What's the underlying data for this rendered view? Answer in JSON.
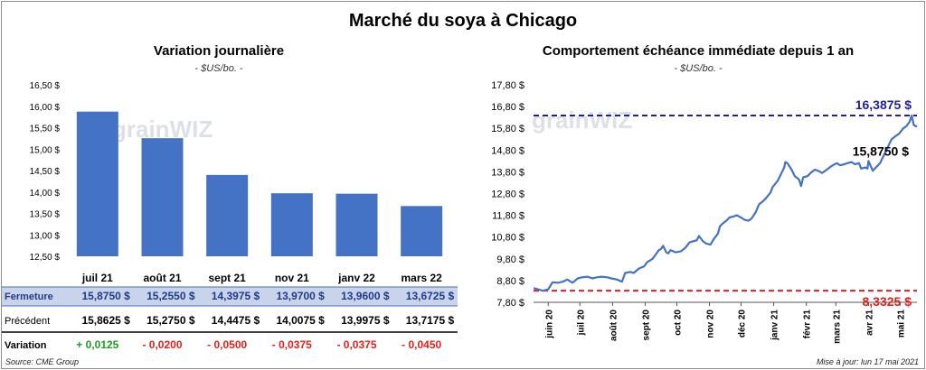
{
  "title": "Marché du soya à Chicago",
  "left": {
    "title": "Variation journalière",
    "subtitle": "- $US/bo. -",
    "watermark": "grainWIZ"
  },
  "right": {
    "title": "Comportement échéance immédiate depuis 1 an",
    "subtitle": "- $US/bo. -",
    "watermark": "grainWIZ",
    "annotations": {
      "max_label": "16,3875 $",
      "min_label": "8,3325 $",
      "last_label": "15,8750 $"
    }
  },
  "table": {
    "rows": [
      {
        "label": "Fermeture",
        "values": [
          "15,8750 $",
          "15,2550 $",
          "14,3975 $",
          "13,9700 $",
          "13,9600 $",
          "13,6725 $"
        ]
      },
      {
        "label": "Précédent",
        "values": [
          "15,8625 $",
          "15,2750 $",
          "14,4475 $",
          "14,0075 $",
          "13,9975 $",
          "13,7175 $"
        ]
      },
      {
        "label": "Variation",
        "values": [
          "+ 0,0125",
          "- 0,0200",
          "- 0,0500",
          "- 0,0375",
          "- 0,0375",
          "- 0,0450"
        ]
      }
    ]
  },
  "footer": {
    "source": "Source: CME Group",
    "update": "Mise à jour: lun 17 mai 2021"
  },
  "colors": {
    "bar": "#4472c4",
    "line": "#4472c4",
    "max_line": "#1f1fa0",
    "min_line": "#e0201d",
    "positive": "#1f9e1f",
    "negative": "#e0201d",
    "row_highlight": "#c9d3ea"
  },
  "chart_data": [
    {
      "type": "bar",
      "title": "Variation journalière",
      "subtitle": "- $US/bo. -",
      "categories": [
        "juil 21",
        "août 21",
        "sept 21",
        "nov 21",
        "janv 22",
        "mars 22"
      ],
      "values": [
        15.875,
        15.255,
        14.3975,
        13.97,
        13.96,
        13.6725
      ],
      "ylim": [
        12.5,
        16.5
      ],
      "yticks": [
        12.5,
        13.0,
        13.5,
        14.0,
        14.5,
        15.0,
        15.5,
        16.0,
        16.5
      ],
      "ytick_labels": [
        "12,50 $",
        "13,00 $",
        "13,50 $",
        "14,00 $",
        "14,50 $",
        "15,00 $",
        "15,50 $",
        "16,00 $",
        "16,50 $"
      ],
      "grid": false
    },
    {
      "type": "line",
      "title": "Comportement échéance immédiate depuis 1 an",
      "subtitle": "- $US/bo. -",
      "x_start": "2020-05-18",
      "x_end": "2021-05-17",
      "xticks": [
        "2020-06-01",
        "2020-07-01",
        "2020-08-01",
        "2020-09-01",
        "2020-10-01",
        "2020-11-01",
        "2020-12-01",
        "2021-01-01",
        "2021-02-01",
        "2021-03-01",
        "2021-04-01",
        "2021-05-01"
      ],
      "xtick_labels": [
        "juin 20",
        "juil 20",
        "août 20",
        "sept 20",
        "oct 20",
        "nov 20",
        "déc 20",
        "janv 21",
        "févr 21",
        "mars 21",
        "avr 21",
        "mai 21"
      ],
      "ylim": [
        7.8,
        17.8
      ],
      "yticks": [
        7.8,
        8.8,
        9.8,
        10.8,
        11.8,
        12.8,
        13.8,
        14.8,
        15.8,
        16.8,
        17.8
      ],
      "ytick_labels": [
        "7,80 $",
        "8,80 $",
        "9,80 $",
        "10,80 $",
        "11,80 $",
        "12,80 $",
        "13,80 $",
        "14,80 $",
        "15,80 $",
        "16,80 $",
        "17,80 $"
      ],
      "max_value": 16.3875,
      "min_value": 8.3325,
      "last_value": 15.875,
      "series": [
        {
          "points": [
            [
              "2020-05-18",
              8.45
            ],
            [
              "2020-05-22",
              8.4
            ],
            [
              "2020-05-27",
              8.33
            ],
            [
              "2020-06-01",
              8.4
            ],
            [
              "2020-06-05",
              8.72
            ],
            [
              "2020-06-10",
              8.7
            ],
            [
              "2020-06-15",
              8.75
            ],
            [
              "2020-06-19",
              8.85
            ],
            [
              "2020-06-24",
              8.7
            ],
            [
              "2020-06-29",
              8.9
            ],
            [
              "2020-07-03",
              8.95
            ],
            [
              "2020-07-08",
              8.98
            ],
            [
              "2020-07-13",
              8.9
            ],
            [
              "2020-07-17",
              8.95
            ],
            [
              "2020-07-22",
              8.98
            ],
            [
              "2020-07-27",
              8.95
            ],
            [
              "2020-07-31",
              8.9
            ],
            [
              "2020-08-05",
              8.85
            ],
            [
              "2020-08-10",
              8.75
            ],
            [
              "2020-08-13",
              9.15
            ],
            [
              "2020-08-18",
              9.2
            ],
            [
              "2020-08-21",
              9.15
            ],
            [
              "2020-08-26",
              9.35
            ],
            [
              "2020-08-31",
              9.45
            ],
            [
              "2020-09-03",
              9.65
            ],
            [
              "2020-09-08",
              9.8
            ],
            [
              "2020-09-11",
              10.0
            ],
            [
              "2020-09-14",
              10.2
            ],
            [
              "2020-09-16",
              10.25
            ],
            [
              "2020-09-18",
              10.4
            ],
            [
              "2020-09-21",
              10.1
            ],
            [
              "2020-09-23",
              10.05
            ],
            [
              "2020-09-25",
              10.2
            ],
            [
              "2020-09-30",
              10.1
            ],
            [
              "2020-10-05",
              10.15
            ],
            [
              "2020-10-09",
              10.3
            ],
            [
              "2020-10-13",
              10.55
            ],
            [
              "2020-10-16",
              10.6
            ],
            [
              "2020-10-20",
              10.65
            ],
            [
              "2020-10-22",
              10.85
            ],
            [
              "2020-10-26",
              10.6
            ],
            [
              "2020-10-29",
              10.5
            ],
            [
              "2020-11-02",
              10.45
            ],
            [
              "2020-11-05",
              10.7
            ],
            [
              "2020-11-09",
              10.95
            ],
            [
              "2020-11-11",
              11.3
            ],
            [
              "2020-11-13",
              11.4
            ],
            [
              "2020-11-17",
              11.55
            ],
            [
              "2020-11-20",
              11.7
            ],
            [
              "2020-11-24",
              11.75
            ],
            [
              "2020-11-27",
              11.8
            ],
            [
              "2020-12-01",
              11.7
            ],
            [
              "2020-12-04",
              11.6
            ],
            [
              "2020-12-08",
              11.55
            ],
            [
              "2020-12-11",
              11.65
            ],
            [
              "2020-12-15",
              11.95
            ],
            [
              "2020-12-18",
              12.3
            ],
            [
              "2020-12-22",
              12.45
            ],
            [
              "2020-12-24",
              12.55
            ],
            [
              "2020-12-29",
              12.85
            ],
            [
              "2020-12-31",
              13.1
            ],
            [
              "2021-01-05",
              13.4
            ],
            [
              "2021-01-08",
              13.7
            ],
            [
              "2021-01-11",
              14.0
            ],
            [
              "2021-01-12",
              14.25
            ],
            [
              "2021-01-14",
              14.2
            ],
            [
              "2021-01-18",
              13.9
            ],
            [
              "2021-01-21",
              13.6
            ],
            [
              "2021-01-25",
              13.45
            ],
            [
              "2021-01-27",
              13.15
            ],
            [
              "2021-01-29",
              13.55
            ],
            [
              "2021-02-02",
              13.6
            ],
            [
              "2021-02-05",
              13.75
            ],
            [
              "2021-02-09",
              13.9
            ],
            [
              "2021-02-12",
              13.85
            ],
            [
              "2021-02-16",
              13.75
            ],
            [
              "2021-02-19",
              13.85
            ],
            [
              "2021-02-23",
              14.0
            ],
            [
              "2021-02-26",
              14.1
            ],
            [
              "2021-03-02",
              14.2
            ],
            [
              "2021-03-05",
              14.1
            ],
            [
              "2021-03-09",
              14.15
            ],
            [
              "2021-03-12",
              14.2
            ],
            [
              "2021-03-16",
              14.25
            ],
            [
              "2021-03-19",
              14.15
            ],
            [
              "2021-03-23",
              14.2
            ],
            [
              "2021-03-25",
              13.95
            ],
            [
              "2021-03-29",
              14.0
            ],
            [
              "2021-03-31",
              13.95
            ],
            [
              "2021-04-01",
              14.3
            ],
            [
              "2021-04-05",
              13.85
            ],
            [
              "2021-04-08",
              14.0
            ],
            [
              "2021-04-12",
              14.2
            ],
            [
              "2021-04-15",
              14.5
            ],
            [
              "2021-04-20",
              15.0
            ],
            [
              "2021-04-23",
              15.3
            ],
            [
              "2021-04-27",
              15.45
            ],
            [
              "2021-04-30",
              15.55
            ],
            [
              "2021-05-04",
              15.8
            ],
            [
              "2021-05-07",
              15.9
            ],
            [
              "2021-05-10",
              16.1
            ],
            [
              "2021-05-12",
              16.3875
            ],
            [
              "2021-05-14",
              15.95
            ],
            [
              "2021-05-17",
              15.875
            ]
          ]
        }
      ],
      "grid": false
    }
  ]
}
